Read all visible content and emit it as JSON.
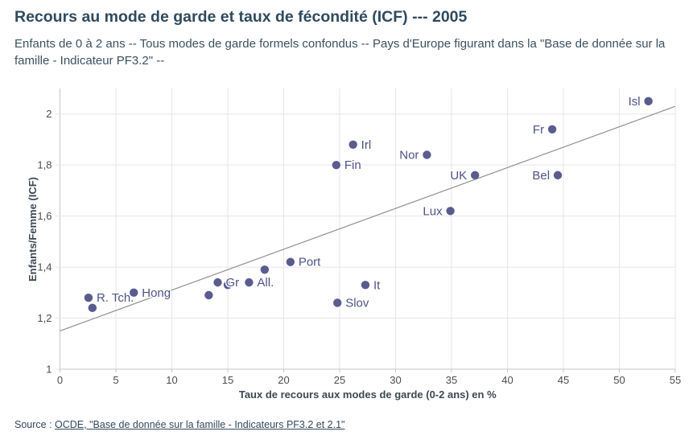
{
  "header": {
    "title": "Recours au mode de garde et taux de fécondité (ICF) --- 2005",
    "subtitle": "Enfants de 0 à 2 ans -- Tous modes de garde formels confondus -- Pays d'Europe figurant dans la \"Base de donnée sur la famille - Indicateur PF3.2\" --"
  },
  "source": {
    "prefix": "Source : ",
    "link_text": "OCDE, \"Base de donnée sur la famille - Indicateurs PF3.2 et 2.1\""
  },
  "chart_data": {
    "type": "scatter",
    "title": "Recours au mode de garde et taux de fécondité (ICF) --- 2005",
    "xlabel": "Taux de recours aux modes de garde (0-2 ans) en %",
    "ylabel": "Enfants/Femme (ICF)",
    "xlim": [
      0,
      55
    ],
    "ylim": [
      1,
      2.1
    ],
    "grid": true,
    "x_ticks": [
      0,
      5,
      10,
      15,
      20,
      25,
      30,
      35,
      40,
      45,
      50,
      55
    ],
    "x_tick_labels": [
      "0",
      "5",
      "10",
      "15",
      "20",
      "25",
      "30",
      "35",
      "40",
      "45",
      "50",
      "55"
    ],
    "y_ticks": [
      1,
      1.2,
      1.4,
      1.6,
      1.8,
      2
    ],
    "y_tick_labels": [
      "1",
      "1,2",
      "1,4",
      "1,6",
      "1,8",
      "2"
    ],
    "colors": {
      "point": "#5a5c90",
      "point_label": "#4f5187",
      "trend_line": "#8f8f8f",
      "gridline": "#e6e6e6",
      "axis_line": "#c6c6c6",
      "tick_label": "#4c4c4c",
      "axis_title": "#3d4852"
    },
    "trend_line": {
      "x1": 0,
      "y1": 1.15,
      "x2": 55,
      "y2": 2.03
    },
    "points": [
      {
        "label": "Isl",
        "x": 52.6,
        "y": 2.05,
        "side": "left"
      },
      {
        "label": "Fr",
        "x": 44.0,
        "y": 1.94,
        "side": "left"
      },
      {
        "label": "Irl",
        "x": 26.2,
        "y": 1.88,
        "side": "right"
      },
      {
        "label": "Nor",
        "x": 32.8,
        "y": 1.84,
        "side": "left"
      },
      {
        "label": "Fin",
        "x": 24.7,
        "y": 1.8,
        "side": "right"
      },
      {
        "label": "UK",
        "x": 37.1,
        "y": 1.76,
        "side": "left"
      },
      {
        "label": "Bel",
        "x": 44.5,
        "y": 1.76,
        "side": "left"
      },
      {
        "label": "Lux",
        "x": 34.9,
        "y": 1.62,
        "side": "left"
      },
      {
        "label": "Port",
        "x": 20.6,
        "y": 1.42,
        "side": "right"
      },
      {
        "label": "",
        "x": 18.3,
        "y": 1.39,
        "side": "none"
      },
      {
        "label": "",
        "x": 15.0,
        "y": 1.33,
        "side": "none"
      },
      {
        "label": "Gr",
        "x": 14.1,
        "y": 1.34,
        "side": "right"
      },
      {
        "label": "All.",
        "x": 16.9,
        "y": 1.34,
        "side": "right"
      },
      {
        "label": "It",
        "x": 27.3,
        "y": 1.33,
        "side": "right"
      },
      {
        "label": "",
        "x": 13.3,
        "y": 1.29,
        "side": "none"
      },
      {
        "label": "Hong",
        "x": 6.6,
        "y": 1.3,
        "side": "right"
      },
      {
        "label": "R. Tch.",
        "x": 2.55,
        "y": 1.28,
        "side": "right"
      },
      {
        "label": "Slov",
        "x": 24.8,
        "y": 1.26,
        "side": "right"
      },
      {
        "label": "",
        "x": 2.9,
        "y": 1.24,
        "side": "none"
      }
    ]
  }
}
